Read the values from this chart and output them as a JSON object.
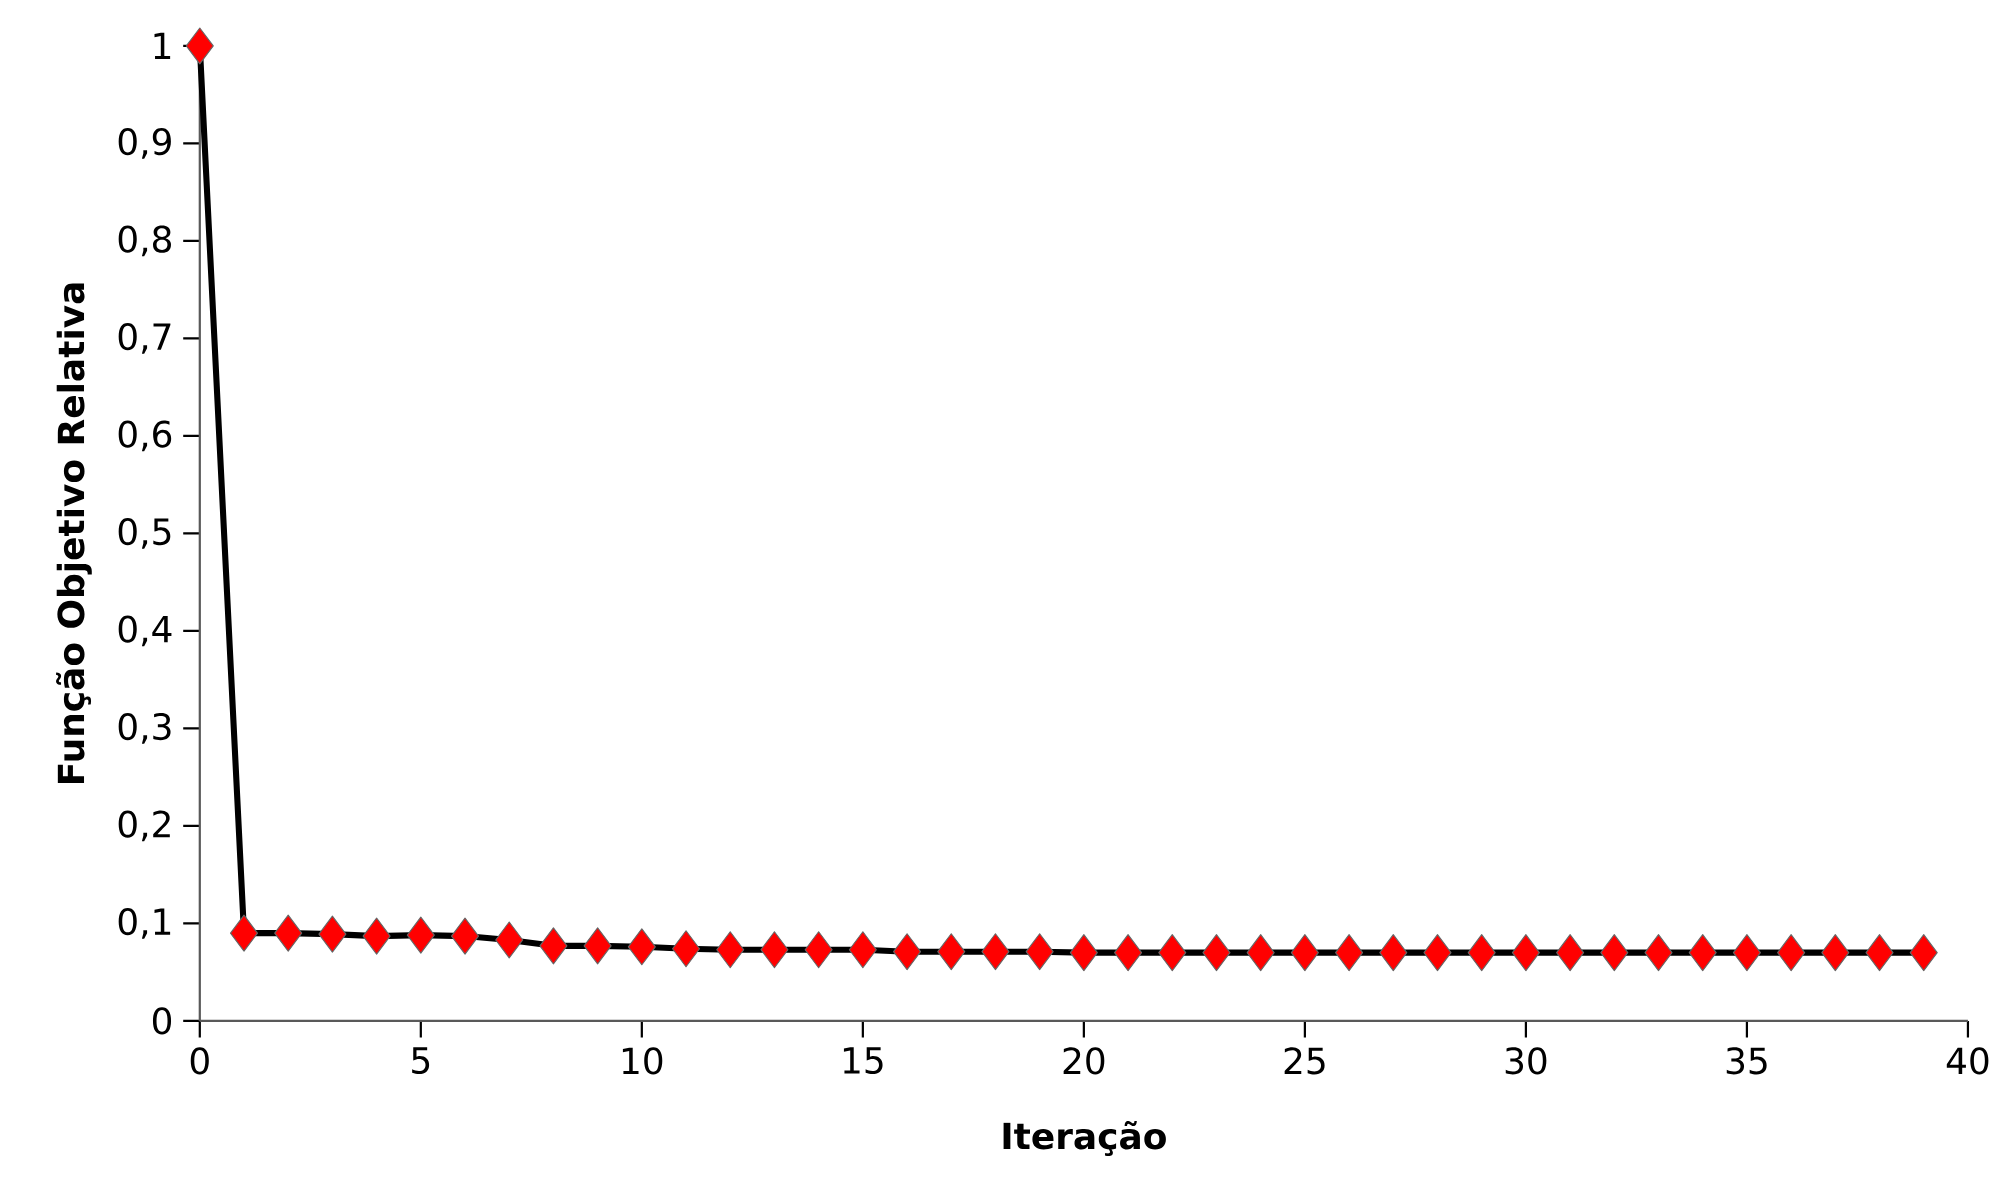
{
  "chart_data": {
    "type": "line",
    "xlabel": "Iteração",
    "ylabel": "Função Objetivo Relativa",
    "x": [
      0,
      1,
      2,
      3,
      4,
      5,
      6,
      7,
      8,
      9,
      10,
      11,
      12,
      13,
      14,
      15,
      16,
      17,
      18,
      19,
      20,
      21,
      22,
      23,
      24,
      25,
      26,
      27,
      28,
      29,
      30,
      31,
      32,
      33,
      34,
      35,
      36,
      37,
      38,
      39
    ],
    "series": [
      {
        "color": "#ff0000",
        "values": [
          1,
          0.09,
          0.09,
          0.089,
          0.087,
          0.088,
          0.087,
          0.083,
          0.077,
          0.077,
          0.076,
          0.074,
          0.073,
          0.073,
          0.073,
          0.073,
          0.071,
          0.071,
          0.071,
          0.071,
          0.07,
          0.07,
          0.07,
          0.07,
          0.07,
          0.07,
          0.07,
          0.07,
          0.07,
          0.07,
          0.07,
          0.07,
          0.07,
          0.07,
          0.07,
          0.07,
          0.07,
          0.07,
          0.07,
          0.07
        ]
      }
    ],
    "xlim": [
      0,
      40
    ],
    "xticks": [
      0,
      5,
      10,
      15,
      20,
      25,
      30,
      35,
      40
    ],
    "ylim": [
      0,
      1
    ],
    "yticks": [
      0,
      {
        "value": 0.1,
        "label": "0,1"
      },
      {
        "value": 0.2,
        "label": "0,2"
      },
      {
        "value": 0.3,
        "label": "0,3"
      },
      {
        "value": 0.4,
        "label": "0,4"
      },
      {
        "value": 0.5,
        "label": "0,5"
      },
      {
        "value": 0.6,
        "label": "0,6"
      },
      {
        "value": 0.7,
        "label": "0,7"
      },
      {
        "value": 0.8,
        "label": "0,8"
      },
      {
        "value": 0.9,
        "label": "0,9"
      },
      1
    ],
    "marker": "diamond",
    "line_style": "solid",
    "grid": false
  }
}
